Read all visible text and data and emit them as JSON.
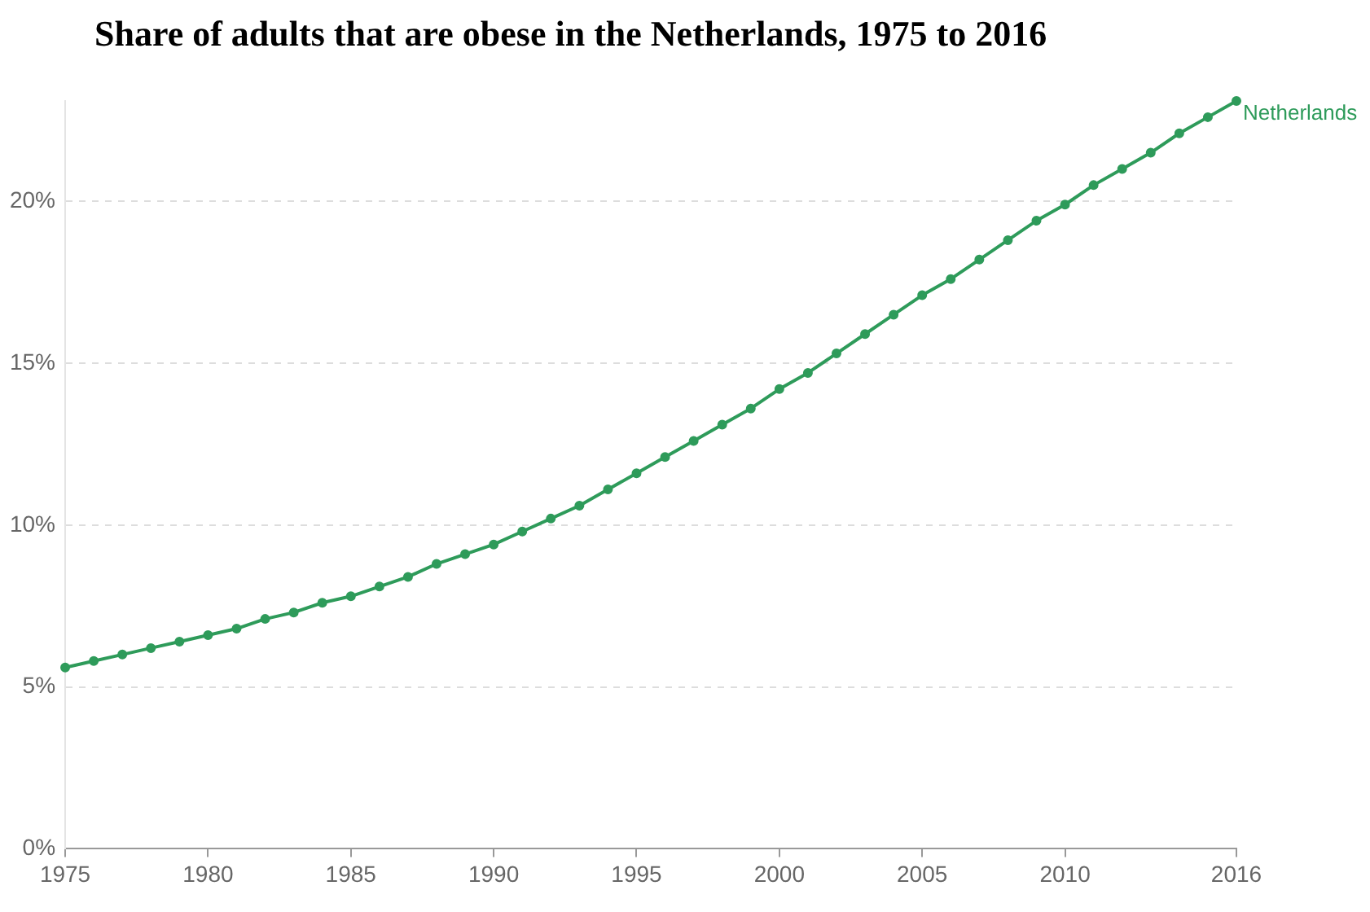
{
  "chart_data": {
    "type": "line",
    "title": "Share of adults that are obese in the Netherlands, 1975 to 2016",
    "x": [
      1975,
      1976,
      1977,
      1978,
      1979,
      1980,
      1981,
      1982,
      1983,
      1984,
      1985,
      1986,
      1987,
      1988,
      1989,
      1990,
      1991,
      1992,
      1993,
      1994,
      1995,
      1996,
      1997,
      1998,
      1999,
      2000,
      2001,
      2002,
      2003,
      2004,
      2005,
      2006,
      2007,
      2008,
      2009,
      2010,
      2011,
      2012,
      2013,
      2014,
      2015,
      2016
    ],
    "series": [
      {
        "name": "Netherlands",
        "color": "#2e9b5a",
        "values": [
          5.6,
          5.8,
          6.0,
          6.2,
          6.4,
          6.6,
          6.8,
          7.1,
          7.3,
          7.6,
          7.8,
          8.1,
          8.4,
          8.8,
          9.1,
          9.4,
          9.8,
          10.2,
          10.6,
          11.1,
          11.6,
          12.1,
          12.6,
          13.1,
          13.6,
          14.2,
          14.7,
          15.3,
          15.9,
          16.5,
          17.1,
          17.6,
          18.2,
          18.8,
          19.4,
          19.9,
          20.5,
          21.0,
          21.5,
          22.1,
          22.6,
          23.1
        ]
      }
    ],
    "xlim": [
      1975,
      2016
    ],
    "xticks": [
      1975,
      1980,
      1985,
      1990,
      1995,
      2000,
      2005,
      2010,
      2016
    ],
    "yticks": [
      {
        "value": 0,
        "label": "0%"
      },
      {
        "value": 5,
        "label": "5%"
      },
      {
        "value": 10,
        "label": "10%"
      },
      {
        "value": 15,
        "label": "15%"
      },
      {
        "value": 20,
        "label": "20%"
      }
    ],
    "ylim": [
      0,
      23.1
    ],
    "grid": "y",
    "marker": "circle",
    "line_style": "solid",
    "legend": "right"
  }
}
